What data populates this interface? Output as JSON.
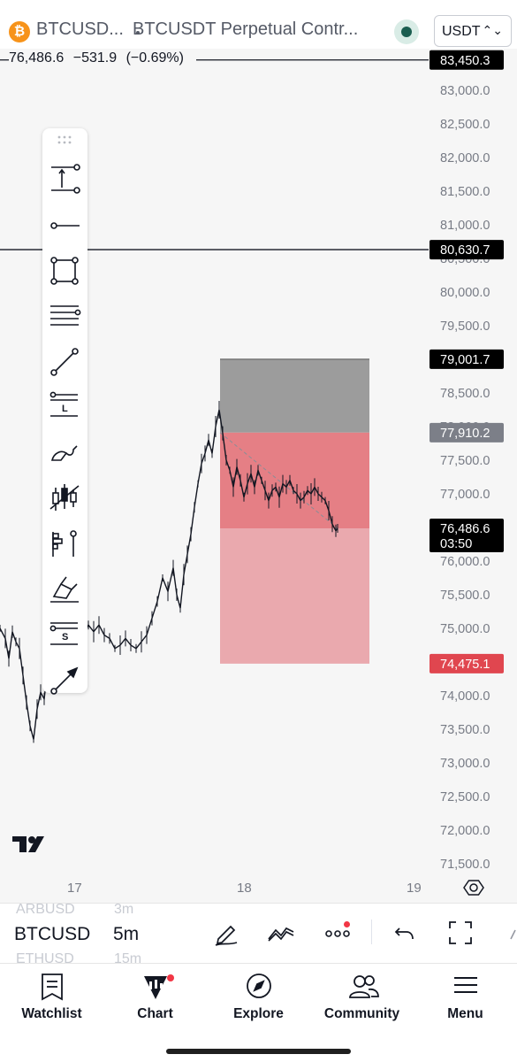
{
  "header": {
    "coin_logo_letter": "₿",
    "symbol": "BTCUSD...",
    "contract_title": "BTCUSDT Perpetual Contr...",
    "market_status_icon": "market-open-dot-icon",
    "currency": "USDT"
  },
  "price_info": {
    "last": "76,486.6",
    "change": "−531.9",
    "change_pct": "(−0.69%)"
  },
  "chart_data": {
    "type": "candlestick",
    "y_ticks": [
      "83,000.0",
      "82,500.0",
      "82,000.0",
      "81,500.0",
      "81,000.0",
      "80,500.0",
      "80,000.0",
      "79,500.0",
      "79,000.0",
      "78,500.0",
      "78,000.0",
      "77,500.0",
      "77,000.0",
      "76,500.0",
      "76,000.0",
      "75,500.0",
      "75,000.0",
      "74,500.0",
      "74,000.0",
      "73,500.0",
      "73,000.0",
      "72,500.0",
      "72,000.0",
      "71,500.0"
    ],
    "y_values": [
      83000,
      82500,
      82000,
      81500,
      81000,
      80500,
      80000,
      79500,
      79000,
      78500,
      78000,
      77500,
      77000,
      76500,
      76000,
      75500,
      75000,
      74500,
      74000,
      73500,
      73000,
      72500,
      72000,
      71500
    ],
    "x_ticks": [
      "17",
      "18",
      "19"
    ],
    "price_lines": [
      {
        "label": "83,450.3",
        "value": 83450.3
      },
      {
        "label": "80,630.7",
        "value": 80630.7
      }
    ],
    "position_tool": {
      "type": "short",
      "stop_level": 79001.7,
      "stop_label": "79,001.7",
      "entry_level": 77910.2,
      "entry_label": "77,910.2",
      "target_level": 74475.1,
      "target_label": "74,475.1"
    },
    "current_price": {
      "label": "76,486.6",
      "value": 76486.6,
      "countdown": "03:50"
    },
    "ohlc_path": [
      [
        0,
        75000
      ],
      [
        6,
        74850
      ],
      [
        10,
        74550
      ],
      [
        14,
        74950
      ],
      [
        18,
        74800
      ],
      [
        22,
        74700
      ],
      [
        26,
        74300
      ],
      [
        30,
        73900
      ],
      [
        34,
        73550
      ],
      [
        38,
        73350
      ],
      [
        42,
        73800
      ],
      [
        46,
        74050
      ],
      [
        50,
        73950
      ],
      [
        54,
        74400
      ],
      [
        58,
        74600
      ],
      [
        62,
        74300
      ],
      [
        66,
        74550
      ],
      [
        70,
        74750
      ],
      [
        76,
        74850
      ],
      [
        82,
        74950
      ],
      [
        88,
        75050
      ],
      [
        94,
        74900
      ],
      [
        100,
        75050
      ],
      [
        106,
        74950
      ],
      [
        112,
        75050
      ],
      [
        118,
        74900
      ],
      [
        124,
        74850
      ],
      [
        130,
        74700
      ],
      [
        136,
        74750
      ],
      [
        142,
        74850
      ],
      [
        148,
        74750
      ],
      [
        154,
        74700
      ],
      [
        160,
        74800
      ],
      [
        166,
        74900
      ],
      [
        172,
        75150
      ],
      [
        178,
        75400
      ],
      [
        184,
        75750
      ],
      [
        190,
        75550
      ],
      [
        196,
        75900
      ],
      [
        200,
        75500
      ],
      [
        204,
        75300
      ],
      [
        208,
        75800
      ],
      [
        212,
        76100
      ],
      [
        216,
        76400
      ],
      [
        220,
        76800
      ],
      [
        224,
        77150
      ],
      [
        228,
        77450
      ],
      [
        232,
        77600
      ],
      [
        236,
        77800
      ],
      [
        240,
        77600
      ],
      [
        244,
        78000
      ],
      [
        248,
        78250
      ],
      [
        252,
        77900
      ],
      [
        256,
        77500
      ],
      [
        260,
        77350
      ],
      [
        264,
        77100
      ],
      [
        268,
        77400
      ],
      [
        272,
        77200
      ],
      [
        276,
        76950
      ],
      [
        280,
        77150
      ],
      [
        284,
        77300
      ],
      [
        288,
        77100
      ],
      [
        292,
        77350
      ],
      [
        296,
        77200
      ],
      [
        300,
        77050
      ],
      [
        304,
        76900
      ],
      [
        308,
        77050
      ],
      [
        312,
        77100
      ],
      [
        316,
        76950
      ],
      [
        320,
        77150
      ],
      [
        324,
        77100
      ],
      [
        328,
        77200
      ],
      [
        332,
        77050
      ],
      [
        336,
        77000
      ],
      [
        340,
        76900
      ],
      [
        344,
        76950
      ],
      [
        348,
        77050
      ],
      [
        352,
        77000
      ],
      [
        356,
        77100
      ],
      [
        360,
        77000
      ],
      [
        364,
        76950
      ],
      [
        368,
        76900
      ],
      [
        372,
        76750
      ],
      [
        376,
        76550
      ],
      [
        380,
        76450
      ],
      [
        382,
        76486.6
      ]
    ]
  },
  "draw_tools": [
    {
      "name": "tool-cross-line-icon"
    },
    {
      "name": "tool-horizontal-ray-icon"
    },
    {
      "name": "tool-rectangle-icon"
    },
    {
      "name": "tool-parallel-channel-icon"
    },
    {
      "name": "tool-trend-line-icon"
    },
    {
      "name": "tool-long-position-icon",
      "label": "L"
    },
    {
      "name": "tool-brush-icon"
    },
    {
      "name": "tool-bars-pattern-icon"
    },
    {
      "name": "tool-anchored-vwap-icon"
    },
    {
      "name": "tool-highlighter-icon"
    },
    {
      "name": "tool-short-position-icon",
      "label": "S"
    },
    {
      "name": "tool-arrow-icon"
    }
  ],
  "bottom_toolbar": {
    "symbols": [
      "ARBUSD",
      "BTCUSD",
      "ETHUSD"
    ],
    "intervals": [
      "3m",
      "5m",
      "15m"
    ]
  },
  "tabs": [
    {
      "label": "Watchlist",
      "icon": "watchlist-icon"
    },
    {
      "label": "Chart",
      "icon": "chart-icon"
    },
    {
      "label": "Explore",
      "icon": "compass-icon"
    },
    {
      "label": "Community",
      "icon": "community-icon"
    },
    {
      "label": "Menu",
      "icon": "hamburger-icon"
    }
  ],
  "colors": {
    "stop_zone": "#9c9c9c",
    "entry_zone": "#e57f85",
    "target_zone": "#eaa9ae",
    "target_tag": "#e0464f",
    "price_tag": "#000000",
    "notification": "#f23645"
  }
}
